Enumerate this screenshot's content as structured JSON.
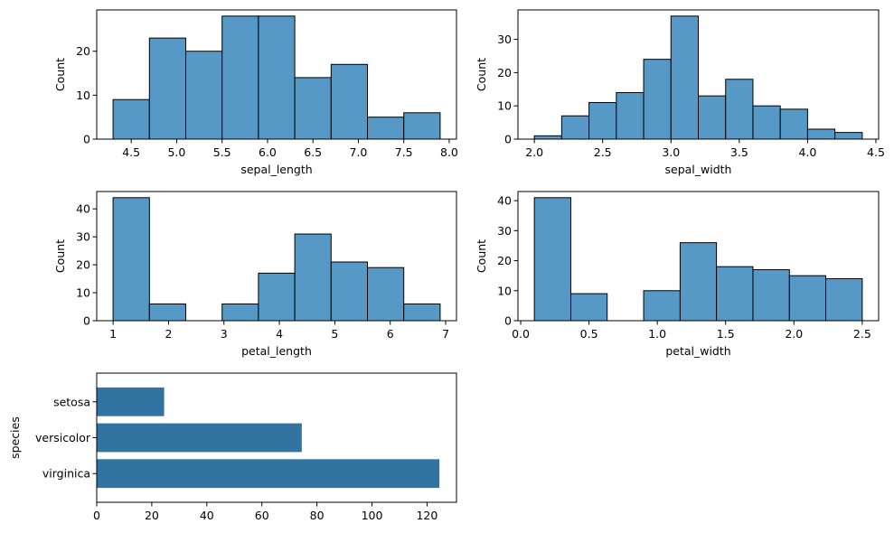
{
  "chart_data": [
    {
      "type": "histogram",
      "xlabel": "sepal_length",
      "ylabel": "Count",
      "xlim": [
        4.12,
        8.08
      ],
      "ylim": [
        0,
        29.4
      ],
      "xticks": [
        4.5,
        5.0,
        5.5,
        6.0,
        6.5,
        7.0,
        7.5,
        8.0
      ],
      "xtick_labels": [
        "4.5",
        "5.0",
        "5.5",
        "6.0",
        "6.5",
        "7.0",
        "7.5",
        "8.0"
      ],
      "yticks": [
        0,
        10,
        20
      ],
      "ytick_labels": [
        "0",
        "10",
        "20"
      ],
      "bins": [
        4.3,
        4.7,
        5.1,
        5.5,
        5.9,
        6.3,
        6.7,
        7.1,
        7.5,
        7.9
      ],
      "values": [
        9,
        23,
        20,
        28,
        28,
        14,
        17,
        5,
        6
      ],
      "color": "#5699c6"
    },
    {
      "type": "histogram",
      "xlabel": "sepal_width",
      "ylabel": "Count",
      "xlim": [
        1.88,
        4.52
      ],
      "ylim": [
        0,
        38.85
      ],
      "xticks": [
        2.0,
        2.5,
        3.0,
        3.5,
        4.0,
        4.5
      ],
      "xtick_labels": [
        "2.0",
        "2.5",
        "3.0",
        "3.5",
        "4.0",
        "4.5"
      ],
      "yticks": [
        0,
        10,
        20,
        30
      ],
      "ytick_labels": [
        "0",
        "10",
        "20",
        "30"
      ],
      "bins": [
        2.0,
        2.2,
        2.4,
        2.6,
        2.8,
        3.0,
        3.2,
        3.4,
        3.6,
        3.8,
        4.0,
        4.2,
        4.4
      ],
      "values": [
        1,
        7,
        11,
        14,
        24,
        37,
        13,
        18,
        10,
        9,
        3,
        2,
        1
      ],
      "color": "#5699c6"
    },
    {
      "type": "histogram",
      "xlabel": "petal_length",
      "ylabel": "Count",
      "xlim": [
        0.705,
        7.195
      ],
      "ylim": [
        0,
        46.2
      ],
      "xticks": [
        1,
        2,
        3,
        4,
        5,
        6,
        7
      ],
      "xtick_labels": [
        "1",
        "2",
        "3",
        "4",
        "5",
        "6",
        "7"
      ],
      "yticks": [
        0,
        10,
        20,
        30,
        40
      ],
      "ytick_labels": [
        "0",
        "10",
        "20",
        "30",
        "40"
      ],
      "bins": [
        1.0,
        1.656,
        2.311,
        2.967,
        3.622,
        4.278,
        4.933,
        5.589,
        6.244,
        6.9
      ],
      "values": [
        44,
        6,
        0,
        6,
        17,
        31,
        21,
        19,
        6
      ],
      "color": "#5699c6"
    },
    {
      "type": "histogram",
      "xlabel": "petal_width",
      "ylabel": "Count",
      "xlim": [
        -0.02,
        2.62
      ],
      "ylim": [
        0,
        43.05
      ],
      "xticks": [
        0.0,
        0.5,
        1.0,
        1.5,
        2.0,
        2.5
      ],
      "xtick_labels": [
        "0.0",
        "0.5",
        "1.0",
        "1.5",
        "2.0",
        "2.5"
      ],
      "yticks": [
        0,
        10,
        20,
        30,
        40
      ],
      "ytick_labels": [
        "0",
        "10",
        "20",
        "30",
        "40"
      ],
      "bins": [
        0.1,
        0.367,
        0.633,
        0.9,
        1.167,
        1.433,
        1.7,
        1.967,
        2.233,
        2.5
      ],
      "values": [
        41,
        9,
        0,
        10,
        26,
        18,
        17,
        15,
        14
      ],
      "color": "#5699c6"
    },
    {
      "type": "bar",
      "orientation": "horizontal",
      "ylabel": "species",
      "xlabel": "",
      "categories": [
        "setosa",
        "versicolor",
        "virginica"
      ],
      "values": [
        24.5,
        74.5,
        124.5
      ],
      "xlim": [
        0,
        130.7
      ],
      "xticks": [
        0,
        20,
        40,
        60,
        80,
        100,
        120
      ],
      "xtick_labels": [
        "0",
        "20",
        "40",
        "60",
        "80",
        "100",
        "120"
      ],
      "color": "#3274a1"
    }
  ]
}
